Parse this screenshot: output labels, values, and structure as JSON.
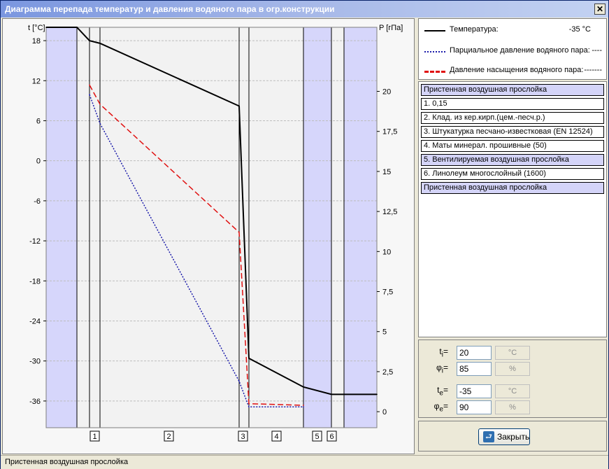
{
  "window": {
    "title": "Диаграмма перепада температур и давления водяного пара в огр.конструкции",
    "close_glyph": "✕"
  },
  "chart": {
    "left_axis_label": "t [°C]",
    "right_axis_label": "P [гПа]",
    "left_ticks": [
      "18",
      "12",
      "6",
      "0",
      "-6",
      "-12",
      "-18",
      "-24",
      "-30",
      "-36"
    ],
    "right_ticks": [
      "20",
      "17,5",
      "15",
      "12,5",
      "10",
      "7,5",
      "5",
      "2,5",
      "0"
    ],
    "layer_markers": [
      "1",
      "2",
      "3",
      "4",
      "5",
      "6"
    ],
    "colors": {
      "temperature": "#000000",
      "partial_pressure": "#1a1aaa",
      "saturation_pressure": "#e01010",
      "air_band": "#d6d6fb",
      "grid": "#bdbdbd"
    }
  },
  "chart_data": {
    "type": "line",
    "title": "",
    "left_axis": {
      "label": "t [°C]",
      "range": [
        -40,
        20
      ],
      "ticks": [
        18,
        12,
        6,
        0,
        -6,
        -12,
        -18,
        -24,
        -30,
        -36
      ]
    },
    "right_axis": {
      "label": "P [гПа]",
      "range": [
        -1,
        24
      ],
      "ticks": [
        20,
        17.5,
        15,
        12.5,
        10,
        7.5,
        5,
        2.5,
        0
      ]
    },
    "grid": true,
    "series": [
      {
        "name": "Температура",
        "axis": "left",
        "style": "solid",
        "x": [
          0,
          1,
          2,
          3,
          4,
          5,
          6,
          7,
          8,
          9
        ],
        "y": [
          20,
          20,
          18,
          17.6,
          8.2,
          -29.6,
          -33.9,
          -35,
          -35,
          -35
        ]
      },
      {
        "name": "Парциальное давление водяного пара",
        "axis": "right",
        "style": "dotted",
        "x": [
          2,
          3,
          4,
          5,
          6
        ],
        "y": [
          19.8,
          18.0,
          1.9,
          0.3,
          0.3
        ]
      },
      {
        "name": "Давление насыщения водяного пара",
        "axis": "right",
        "style": "dashed",
        "x": [
          2,
          3,
          4,
          5,
          6
        ],
        "y": [
          20.4,
          19.2,
          11.2,
          0.5,
          0.4
        ]
      }
    ]
  },
  "legend": [
    {
      "label": "Температура:",
      "value": "-35 °C",
      "style": "solid"
    },
    {
      "label": "Парциальное давление водяного пара:",
      "value": "----",
      "style": "dotted"
    },
    {
      "label": "Давление насыщения водяного пара:",
      "value": "-------",
      "style": "dashed"
    }
  ],
  "layers": [
    {
      "label": "Пристенная воздушная прослойка",
      "air": true
    },
    {
      "label": "1. 0,15",
      "air": false
    },
    {
      "label": "2. Клад. из кер.кирп.(цем.-песч.р.)",
      "air": false
    },
    {
      "label": "3. Штукатурка песчано-известковая (EN 12524)",
      "air": false
    },
    {
      "label": "4. Маты минерал. прошивные (50)",
      "air": false
    },
    {
      "label": "5. Вентилируемая воздушная прослойка",
      "air": true
    },
    {
      "label": "6. Линолеум многослойный (1600)",
      "air": false
    },
    {
      "label": "Пристенная воздушная прослойка",
      "air": true
    }
  ],
  "params": {
    "ti": {
      "symbol": "t",
      "sub": "i",
      "value": "20",
      "unit": "°C"
    },
    "phii": {
      "symbol": "φ",
      "sub": "i",
      "value": "85",
      "unit": "%"
    },
    "te": {
      "symbol": "t",
      "sub": "e",
      "value": "-35",
      "unit": "°C"
    },
    "phie": {
      "symbol": "φ",
      "sub": "e",
      "value": "90",
      "unit": "%"
    }
  },
  "buttons": {
    "close_label": "Закрыть"
  },
  "status": {
    "text": "Пристенная воздушная прослойка"
  }
}
